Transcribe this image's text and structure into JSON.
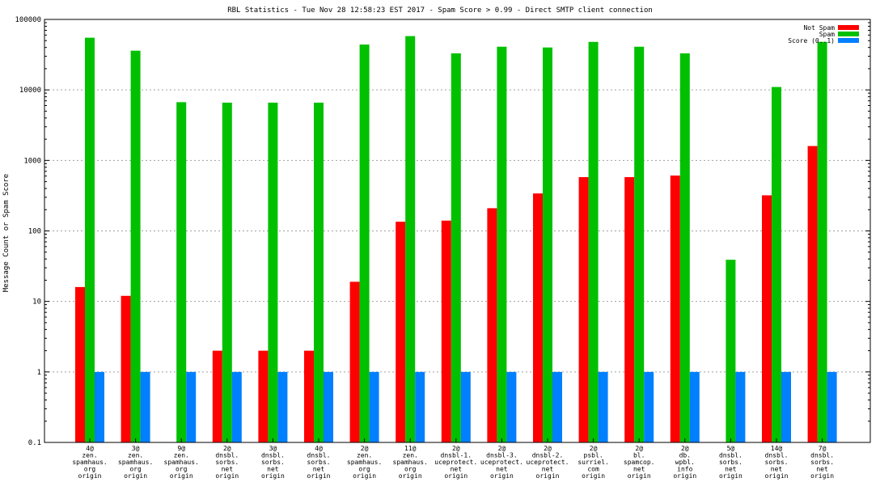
{
  "chart_data": {
    "type": "bar",
    "title": "RBL Statistics - Tue Nov 28 12:58:23 EST 2017 - Spam Score > 0.99 - Direct SMTP client connection",
    "ylabel": "Message Count or Spam Score",
    "xlabel": "",
    "yscale": "log",
    "ylim": [
      0.1,
      100000
    ],
    "yticks": [
      "0.1",
      "1",
      "10",
      "100",
      "1000",
      "10000",
      "100000"
    ],
    "grid": "dashed horizontal",
    "legend_position": "top-right",
    "categories": [
      [
        "4@",
        "zen.",
        "spamhaus.",
        "org",
        "origin"
      ],
      [
        "3@",
        "zen.",
        "spamhaus.",
        "org",
        "origin"
      ],
      [
        "9@",
        "zen.",
        "spamhaus.",
        "org",
        "origin"
      ],
      [
        "2@",
        "dnsbl.",
        "sorbs.",
        "net",
        "origin"
      ],
      [
        "3@",
        "dnsbl.",
        "sorbs.",
        "net",
        "origin"
      ],
      [
        "4@",
        "dnsbl.",
        "sorbs.",
        "net",
        "origin"
      ],
      [
        "2@",
        "zen.",
        "spamhaus.",
        "org",
        "origin"
      ],
      [
        "11@",
        "zen.",
        "spamhaus.",
        "org",
        "origin"
      ],
      [
        "2@",
        "dnsbl-1.",
        "uceprotect.",
        "net",
        "origin"
      ],
      [
        "2@",
        "dnsbl-3.",
        "uceprotect.",
        "net",
        "origin"
      ],
      [
        "2@",
        "dnsbl-2.",
        "uceprotect.",
        "net",
        "origin"
      ],
      [
        "2@",
        "psbl.",
        "surriel.",
        "com",
        "origin"
      ],
      [
        "2@",
        "bl.",
        "spamcop.",
        "net",
        "origin"
      ],
      [
        "2@",
        "db.",
        "wpbl.",
        "info",
        "origin"
      ],
      [
        "5@",
        "dnsbl.",
        "sorbs.",
        "net",
        "origin"
      ],
      [
        "14@",
        "dnsbl.",
        "sorbs.",
        "net",
        "origin"
      ],
      [
        "7@",
        "dnsbl.",
        "sorbs.",
        "net",
        "origin"
      ]
    ],
    "series": [
      {
        "name": "Not Spam",
        "color": "#ff0000",
        "values": [
          16,
          12,
          null,
          2,
          2,
          2,
          19,
          135,
          140,
          210,
          340,
          580,
          580,
          610,
          null,
          320,
          1600
        ]
      },
      {
        "name": "Spam",
        "color": "#00c000",
        "values": [
          55000,
          36000,
          6700,
          6600,
          6600,
          6600,
          44000,
          58000,
          33000,
          41000,
          40000,
          48000,
          41000,
          33000,
          39,
          11000,
          48000
        ]
      },
      {
        "name": "Score (0..1)",
        "color": "#0080ff",
        "values": [
          1,
          1,
          1,
          1,
          1,
          1,
          1,
          1,
          1,
          1,
          1,
          1,
          1,
          1,
          1,
          1,
          1
        ]
      }
    ]
  }
}
